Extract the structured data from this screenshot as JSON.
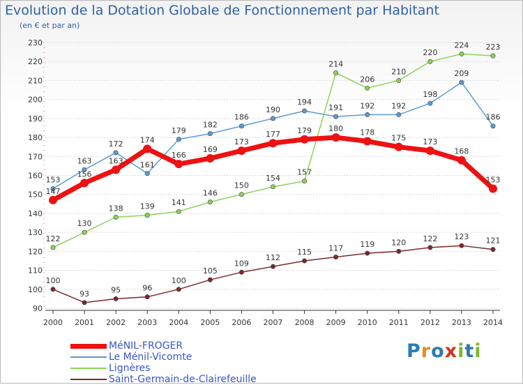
{
  "title": "Evolution de la Dotation Globale de Fonctionnement par Habitant",
  "subtitle": "(en € et par an)",
  "colors": {
    "title": "#2f5fa8",
    "axis": "#333333",
    "grid": "#d9d9d9",
    "label": "#333333",
    "legend_text": "#3a55c9"
  },
  "chart_data": {
    "type": "line",
    "x": [
      "2000",
      "2001",
      "2002",
      "2003",
      "2004",
      "2005",
      "2006",
      "2007",
      "2008",
      "2009",
      "2010",
      "2011",
      "2012",
      "2013",
      "2014"
    ],
    "ylim": [
      90,
      230
    ],
    "yticks": [
      90,
      100,
      110,
      120,
      130,
      140,
      150,
      160,
      170,
      180,
      190,
      200,
      210,
      220,
      230
    ],
    "grid": true,
    "legend_position": "bottom-left",
    "series": [
      {
        "name": "MéNIL-FROGER",
        "color": "#ee1111",
        "emphasis": true,
        "values": [
          147,
          156,
          163,
          174,
          166,
          169,
          173,
          177,
          179,
          180,
          178,
          175,
          173,
          168,
          153
        ]
      },
      {
        "name": "Le Ménil-Vicomte",
        "color": "#5b9bd5",
        "values": [
          153,
          163,
          172,
          161,
          179,
          182,
          186,
          190,
          194,
          191,
          192,
          192,
          198,
          209,
          186
        ]
      },
      {
        "name": "Lignères",
        "color": "#8fd05a",
        "values": [
          122,
          130,
          138,
          139,
          141,
          146,
          150,
          154,
          157,
          214,
          206,
          210,
          220,
          224,
          223
        ]
      },
      {
        "name": "Saint-Germain-de-Clairefeuille",
        "color": "#7a2a2a",
        "values": [
          100,
          93,
          95,
          96,
          100,
          105,
          109,
          112,
          115,
          117,
          119,
          120,
          122,
          123,
          121
        ]
      }
    ]
  },
  "logo": {
    "letters": [
      "P",
      "r",
      "o",
      "x",
      "i",
      "t",
      "i"
    ],
    "colors": [
      "#2a7ab8",
      "#e88b1a",
      "#2a7ab8",
      "#d9321c",
      "#7ab82a",
      "#2a7ab8",
      "#7ab82a"
    ]
  }
}
